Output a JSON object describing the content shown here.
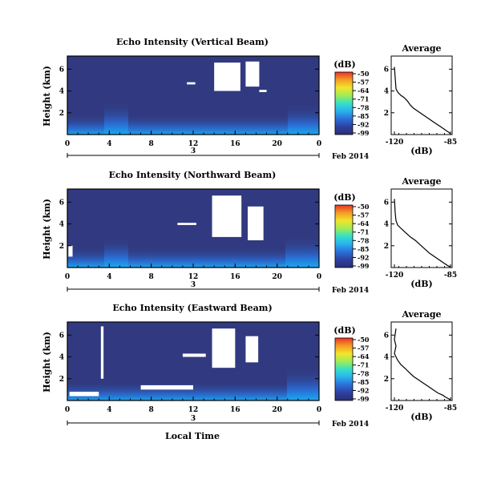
{
  "chart_data": [
    {
      "type": "heatmap",
      "title": "Echo Intensity (Vertical Beam)",
      "xlabel": "",
      "ylabel": "Height (km)",
      "x_ticks": [
        "0",
        "4",
        "8",
        "12",
        "16",
        "20",
        "0"
      ],
      "y_ticks": [
        "6",
        "4",
        "2"
      ],
      "xlim": [
        0,
        24
      ],
      "ylim": [
        0,
        7.2
      ],
      "date_axis": {
        "day_label": "3",
        "date_label": "Feb 2014"
      },
      "colorbar": {
        "label": "(dB)",
        "ticks": [
          "-50",
          "-57",
          "-64",
          "-71",
          "-78",
          "-85",
          "-92",
          "-99"
        ]
      },
      "white_gaps": [
        [
          14,
          16.5,
          4.0,
          6.6
        ],
        [
          17,
          18.3,
          4.4,
          6.7
        ],
        [
          11.4,
          12.2,
          4.6,
          4.8
        ],
        [
          18.3,
          19,
          3.9,
          4.1
        ]
      ],
      "profile": {
        "title": "Average",
        "xlabel": "(dB)",
        "x_ticks": [
          "-120",
          "-85"
        ],
        "y_ticks": [
          "6",
          "4",
          "2"
        ],
        "xlim": [
          -122,
          -84
        ],
        "ylim": [
          0,
          7.2
        ],
        "x": [
          -120,
          -119.5,
          -119,
          -118,
          -116,
          -114,
          -112,
          -110,
          -108,
          -105,
          -102,
          -99,
          -96,
          -93,
          -90,
          -88,
          -86,
          -85
        ],
        "y": [
          6.2,
          5.2,
          4.2,
          3.9,
          3.6,
          3.4,
          3.1,
          2.7,
          2.4,
          2.1,
          1.8,
          1.5,
          1.2,
          0.9,
          0.6,
          0.4,
          0.2,
          0.05
        ]
      }
    },
    {
      "type": "heatmap",
      "title": "Echo Intensity (Northward Beam)",
      "xlabel": "",
      "ylabel": "Height (km)",
      "x_ticks": [
        "0",
        "4",
        "8",
        "12",
        "16",
        "20",
        "0"
      ],
      "y_ticks": [
        "6",
        "4",
        "2"
      ],
      "xlim": [
        0,
        24
      ],
      "ylim": [
        0,
        7.2
      ],
      "date_axis": {
        "day_label": "3",
        "date_label": "Feb 2014"
      },
      "colorbar": {
        "label": "(dB)",
        "ticks": [
          "-50",
          "-57",
          "-64",
          "-71",
          "-78",
          "-85",
          "-92",
          "-99"
        ]
      },
      "white_gaps": [
        [
          13.8,
          16.6,
          2.8,
          6.6
        ],
        [
          17.2,
          18.7,
          2.5,
          5.6
        ],
        [
          10.5,
          12.3,
          3.9,
          4.1
        ],
        [
          0.1,
          0.5,
          1.0,
          2.0
        ]
      ],
      "profile": {
        "title": "Average",
        "xlabel": "(dB)",
        "x_ticks": [
          "-120",
          "-85"
        ],
        "y_ticks": [
          "6",
          "4",
          "2"
        ],
        "xlim": [
          -122,
          -84
        ],
        "ylim": [
          0,
          7.2
        ],
        "x": [
          -120,
          -119.5,
          -119,
          -118,
          -116,
          -113,
          -110,
          -107,
          -104,
          -101,
          -98,
          -95,
          -92,
          -89,
          -87,
          -85
        ],
        "y": [
          6.3,
          5.0,
          4.3,
          3.9,
          3.6,
          3.2,
          2.8,
          2.5,
          2.1,
          1.7,
          1.3,
          1.0,
          0.7,
          0.4,
          0.2,
          0.05
        ]
      }
    },
    {
      "type": "heatmap",
      "title": "Echo Intensity (Eastward Beam)",
      "xlabel": "Local Time",
      "ylabel": "Height (km)",
      "x_ticks": [
        "0",
        "4",
        "8",
        "12",
        "16",
        "20",
        "0"
      ],
      "y_ticks": [
        "6",
        "4",
        "2"
      ],
      "xlim": [
        0,
        24
      ],
      "ylim": [
        0,
        7.2
      ],
      "date_axis": {
        "day_label": "3",
        "date_label": "Feb 2014"
      },
      "colorbar": {
        "label": "(dB)",
        "ticks": [
          "-50",
          "-57",
          "-64",
          "-71",
          "-78",
          "-85",
          "-92",
          "-99"
        ]
      },
      "white_gaps": [
        [
          13.8,
          16.0,
          3.0,
          6.6
        ],
        [
          17.0,
          18.2,
          3.5,
          5.9
        ],
        [
          3.2,
          3.45,
          2.0,
          6.8
        ],
        [
          7.0,
          12.0,
          1.0,
          1.4
        ],
        [
          11.0,
          13.2,
          4.0,
          4.3
        ],
        [
          0.2,
          3.0,
          0.4,
          0.8
        ]
      ],
      "profile": {
        "title": "Average",
        "xlabel": "(dB)",
        "x_ticks": [
          "-120",
          "-85"
        ],
        "y_ticks": [
          "6",
          "4",
          "2"
        ],
        "xlim": [
          -122,
          -84
        ],
        "ylim": [
          0,
          7.2
        ],
        "x": [
          -119,
          -120,
          -119,
          -120,
          -118,
          -116,
          -113,
          -111,
          -108,
          -105,
          -102,
          -99,
          -96,
          -93,
          -90,
          -88,
          -86,
          -85
        ],
        "y": [
          6.6,
          5.6,
          5.0,
          4.3,
          3.7,
          3.3,
          2.9,
          2.6,
          2.2,
          1.9,
          1.6,
          1.3,
          1.0,
          0.7,
          0.5,
          0.3,
          0.15,
          0.05
        ]
      }
    }
  ]
}
